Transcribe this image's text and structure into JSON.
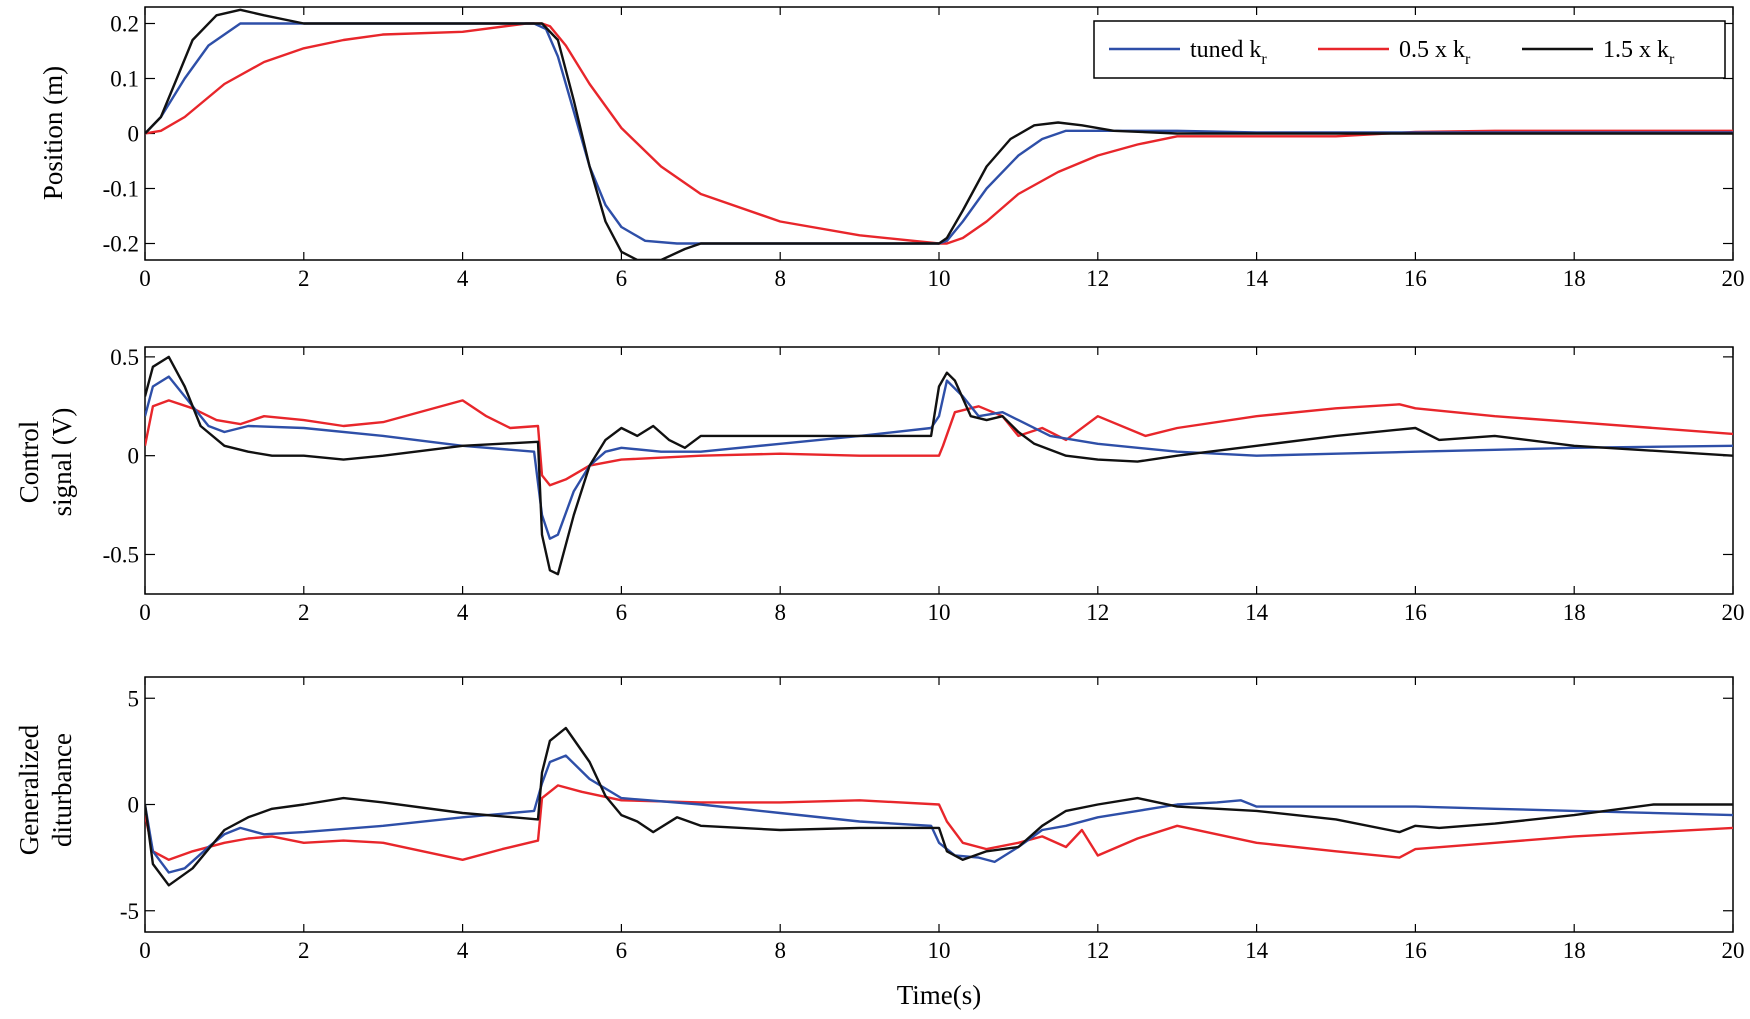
{
  "figure": {
    "xlabel": "Time(s)",
    "legend": [
      {
        "label": "tuned k",
        "subscript": "r",
        "color": "#2e4fa8"
      },
      {
        "label": "0.5 x k",
        "subscript": "r",
        "color": "#e8262b"
      },
      {
        "label": "1.5 x k",
        "subscript": "r",
        "color": "#111111"
      }
    ]
  },
  "chart_data": [
    {
      "type": "line",
      "title": "",
      "xlabel": "Time(s)",
      "ylabel": "Position (m)",
      "xlim": [
        0,
        20
      ],
      "ylim": [
        -0.23,
        0.23
      ],
      "xticks": [
        0,
        2,
        4,
        6,
        8,
        10,
        12,
        14,
        16,
        18,
        20
      ],
      "yticks": [
        0.2,
        0.1,
        0,
        -0.1,
        -0.2
      ],
      "yticklabels": [
        "0.2",
        "0.1",
        "0",
        "-0.1",
        "-0.2"
      ],
      "series": [
        {
          "name": "tuned k_r",
          "color": "#2e4fa8",
          "x": [
            0,
            0.2,
            0.5,
            0.8,
            1.2,
            1.5,
            2,
            3,
            4,
            4.9,
            5.05,
            5.2,
            5.4,
            5.6,
            5.8,
            6.0,
            6.3,
            6.7,
            7,
            8,
            9,
            10,
            10.1,
            10.3,
            10.6,
            11,
            11.3,
            11.6,
            12,
            13,
            14,
            15,
            16,
            17,
            18,
            20
          ],
          "y": [
            0,
            0.03,
            0.1,
            0.16,
            0.2,
            0.2,
            0.2,
            0.2,
            0.2,
            0.2,
            0.19,
            0.14,
            0.04,
            -0.06,
            -0.13,
            -0.17,
            -0.195,
            -0.2,
            -0.2,
            -0.2,
            -0.2,
            -0.2,
            -0.195,
            -0.16,
            -0.1,
            -0.04,
            -0.01,
            0.005,
            0.005,
            0.005,
            0.002,
            0.002,
            0.002,
            0.002,
            0.002,
            0.002
          ]
        },
        {
          "name": "0.5 x k_r",
          "color": "#e8262b",
          "x": [
            0,
            0.2,
            0.5,
            1,
            1.5,
            2,
            2.5,
            3,
            4,
            4.8,
            5,
            5.1,
            5.3,
            5.6,
            6,
            6.5,
            7,
            8,
            9,
            10,
            10.1,
            10.3,
            10.6,
            11,
            11.5,
            12,
            12.5,
            13,
            14,
            15,
            16,
            17,
            18,
            20
          ],
          "y": [
            0,
            0.005,
            0.03,
            0.09,
            0.13,
            0.155,
            0.17,
            0.18,
            0.185,
            0.2,
            0.2,
            0.195,
            0.16,
            0.09,
            0.01,
            -0.06,
            -0.11,
            -0.16,
            -0.185,
            -0.2,
            -0.2,
            -0.19,
            -0.16,
            -0.11,
            -0.07,
            -0.04,
            -0.02,
            -0.005,
            -0.005,
            -0.005,
            0.003,
            0.005,
            0.005,
            0.005
          ]
        },
        {
          "name": "1.5 x k_r",
          "color": "#111111",
          "x": [
            0,
            0.2,
            0.4,
            0.6,
            0.9,
            1.2,
            1.5,
            2,
            3,
            4,
            4.9,
            5.0,
            5.2,
            5.4,
            5.6,
            5.8,
            6.0,
            6.2,
            6.5,
            6.8,
            7,
            8,
            9,
            10,
            10.1,
            10.3,
            10.6,
            10.9,
            11.2,
            11.5,
            11.8,
            12.2,
            13,
            14,
            16,
            18,
            20
          ],
          "y": [
            0,
            0.03,
            0.1,
            0.17,
            0.215,
            0.225,
            0.215,
            0.2,
            0.2,
            0.2,
            0.2,
            0.2,
            0.17,
            0.06,
            -0.06,
            -0.16,
            -0.215,
            -0.23,
            -0.23,
            -0.21,
            -0.2,
            -0.2,
            -0.2,
            -0.2,
            -0.19,
            -0.14,
            -0.06,
            -0.01,
            0.015,
            0.02,
            0.015,
            0.005,
            0,
            0,
            0,
            0,
            0
          ]
        }
      ]
    },
    {
      "type": "line",
      "title": "",
      "xlabel": "Time(s)",
      "ylabel": [
        "Control",
        "signal (V)"
      ],
      "xlim": [
        0,
        20
      ],
      "ylim": [
        -0.7,
        0.55
      ],
      "xticks": [
        0,
        2,
        4,
        6,
        8,
        10,
        12,
        14,
        16,
        18,
        20
      ],
      "yticks": [
        0.5,
        0,
        -0.5
      ],
      "yticklabels": [
        "0.5",
        "0",
        "-0.5"
      ],
      "series": [
        {
          "name": "tuned k_r",
          "color": "#2e4fa8",
          "x": [
            0,
            0.1,
            0.3,
            0.5,
            0.8,
            1.0,
            1.3,
            2,
            3,
            4,
            4.9,
            5.0,
            5.1,
            5.2,
            5.4,
            5.6,
            5.8,
            6.0,
            6.5,
            7,
            8,
            9,
            9.9,
            10.0,
            10.1,
            10.3,
            10.5,
            10.8,
            11.0,
            11.4,
            12,
            13,
            14,
            15,
            16,
            17,
            18,
            20
          ],
          "y": [
            0.2,
            0.35,
            0.4,
            0.3,
            0.15,
            0.12,
            0.15,
            0.14,
            0.1,
            0.05,
            0.02,
            -0.3,
            -0.42,
            -0.4,
            -0.18,
            -0.05,
            0.02,
            0.04,
            0.02,
            0.02,
            0.06,
            0.1,
            0.14,
            0.2,
            0.38,
            0.3,
            0.2,
            0.22,
            0.18,
            0.1,
            0.06,
            0.02,
            0.0,
            0.01,
            0.02,
            0.03,
            0.04,
            0.05
          ]
        },
        {
          "name": "0.5 x k_r",
          "color": "#e8262b",
          "x": [
            0,
            0.1,
            0.3,
            0.6,
            0.9,
            1.2,
            1.5,
            2,
            2.5,
            3,
            4,
            4.3,
            4.6,
            4.95,
            5.0,
            5.1,
            5.3,
            5.6,
            6,
            7,
            8,
            9,
            10,
            10.05,
            10.2,
            10.5,
            10.8,
            11.0,
            11.3,
            11.6,
            12,
            12.6,
            13,
            14,
            15,
            15.8,
            16,
            17,
            18,
            20
          ],
          "y": [
            0.05,
            0.25,
            0.28,
            0.24,
            0.18,
            0.16,
            0.2,
            0.18,
            0.15,
            0.17,
            0.28,
            0.2,
            0.14,
            0.15,
            -0.1,
            -0.15,
            -0.12,
            -0.05,
            -0.02,
            0.0,
            0.01,
            0.0,
            0.0,
            0.05,
            0.22,
            0.25,
            0.2,
            0.1,
            0.14,
            0.08,
            0.2,
            0.1,
            0.14,
            0.2,
            0.24,
            0.26,
            0.24,
            0.2,
            0.17,
            0.11
          ]
        },
        {
          "name": "1.5 x k_r",
          "color": "#111111",
          "x": [
            0,
            0.1,
            0.3,
            0.5,
            0.7,
            1.0,
            1.3,
            1.6,
            2,
            2.5,
            3,
            4,
            4.95,
            5.0,
            5.1,
            5.2,
            5.4,
            5.6,
            5.8,
            6.0,
            6.2,
            6.4,
            6.6,
            6.8,
            7,
            8,
            9,
            9.9,
            10.0,
            10.1,
            10.2,
            10.4,
            10.6,
            10.8,
            11.0,
            11.2,
            11.6,
            12,
            12.5,
            13,
            14,
            15,
            16,
            16.3,
            17,
            18,
            20
          ],
          "y": [
            0.3,
            0.45,
            0.5,
            0.35,
            0.15,
            0.05,
            0.02,
            0.0,
            0.0,
            -0.02,
            0.0,
            0.05,
            0.07,
            -0.4,
            -0.58,
            -0.6,
            -0.3,
            -0.05,
            0.08,
            0.14,
            0.1,
            0.15,
            0.08,
            0.04,
            0.1,
            0.1,
            0.1,
            0.1,
            0.35,
            0.42,
            0.38,
            0.2,
            0.18,
            0.2,
            0.12,
            0.06,
            0.0,
            -0.02,
            -0.03,
            0.0,
            0.05,
            0.1,
            0.14,
            0.08,
            0.1,
            0.05,
            0.0
          ]
        }
      ]
    },
    {
      "type": "line",
      "title": "",
      "xlabel": "Time(s)",
      "ylabel": [
        "Generalized",
        "diturbance"
      ],
      "xlim": [
        0,
        20
      ],
      "ylim": [
        -6,
        6
      ],
      "xticks": [
        0,
        2,
        4,
        6,
        8,
        10,
        12,
        14,
        16,
        18,
        20
      ],
      "yticks": [
        5,
        0,
        -5
      ],
      "yticklabels": [
        "5",
        "0",
        "-5"
      ],
      "series": [
        {
          "name": "tuned k_r",
          "color": "#2e4fa8",
          "x": [
            0,
            0.1,
            0.3,
            0.5,
            0.8,
            1.0,
            1.2,
            1.5,
            2,
            3,
            4,
            4.9,
            5.0,
            5.1,
            5.3,
            5.6,
            6,
            7,
            8,
            9,
            9.9,
            10.0,
            10.2,
            10.5,
            10.7,
            11.0,
            11.3,
            11.6,
            12,
            12.5,
            13,
            13.5,
            13.8,
            14,
            15,
            16,
            17,
            18,
            20
          ],
          "y": [
            0,
            -2.2,
            -3.2,
            -3.0,
            -2.0,
            -1.4,
            -1.1,
            -1.4,
            -1.3,
            -1.0,
            -0.6,
            -0.3,
            1.0,
            2.0,
            2.3,
            1.2,
            0.3,
            0.0,
            -0.4,
            -0.8,
            -1.0,
            -1.8,
            -2.4,
            -2.5,
            -2.7,
            -2.0,
            -1.2,
            -1.0,
            -0.6,
            -0.3,
            0.0,
            0.1,
            0.2,
            -0.1,
            -0.1,
            -0.1,
            -0.2,
            -0.3,
            -0.5
          ]
        },
        {
          "name": "0.5 x k_r",
          "color": "#e8262b",
          "x": [
            0,
            0.1,
            0.3,
            0.6,
            1.0,
            1.3,
            1.6,
            2,
            2.5,
            3,
            3.5,
            4,
            4.5,
            4.95,
            5.0,
            5.2,
            5.5,
            6,
            7,
            8,
            9,
            10,
            10.1,
            10.3,
            10.6,
            11,
            11.3,
            11.6,
            11.8,
            12,
            12.5,
            13,
            14,
            15,
            15.8,
            16,
            17,
            18,
            20
          ],
          "y": [
            -0.5,
            -2.2,
            -2.6,
            -2.2,
            -1.8,
            -1.6,
            -1.5,
            -1.8,
            -1.7,
            -1.8,
            -2.2,
            -2.6,
            -2.1,
            -1.7,
            0.3,
            0.9,
            0.6,
            0.2,
            0.1,
            0.1,
            0.2,
            0.0,
            -0.8,
            -1.8,
            -2.1,
            -1.8,
            -1.5,
            -2.0,
            -1.2,
            -2.4,
            -1.6,
            -1.0,
            -1.8,
            -2.2,
            -2.5,
            -2.1,
            -1.8,
            -1.5,
            -1.1
          ]
        },
        {
          "name": "1.5 x k_r",
          "color": "#111111",
          "x": [
            0,
            0.1,
            0.3,
            0.6,
            1.0,
            1.3,
            1.6,
            2,
            2.5,
            3,
            4,
            4.95,
            5.0,
            5.1,
            5.3,
            5.6,
            5.8,
            6.0,
            6.2,
            6.4,
            6.7,
            7,
            8,
            9,
            10,
            10.1,
            10.3,
            10.6,
            11,
            11.3,
            11.6,
            12,
            12.5,
            13,
            14,
            15,
            15.8,
            16,
            16.3,
            17,
            18,
            19,
            20
          ],
          "y": [
            0,
            -2.8,
            -3.8,
            -3.0,
            -1.2,
            -0.6,
            -0.2,
            0.0,
            0.3,
            0.1,
            -0.4,
            -0.7,
            1.5,
            3.0,
            3.6,
            2.0,
            0.4,
            -0.5,
            -0.8,
            -1.3,
            -0.6,
            -1.0,
            -1.2,
            -1.1,
            -1.1,
            -2.2,
            -2.6,
            -2.2,
            -2.0,
            -1.0,
            -0.3,
            0.0,
            0.3,
            -0.1,
            -0.3,
            -0.7,
            -1.3,
            -1.0,
            -1.1,
            -0.9,
            -0.5,
            0.0,
            0.0
          ]
        }
      ]
    }
  ]
}
